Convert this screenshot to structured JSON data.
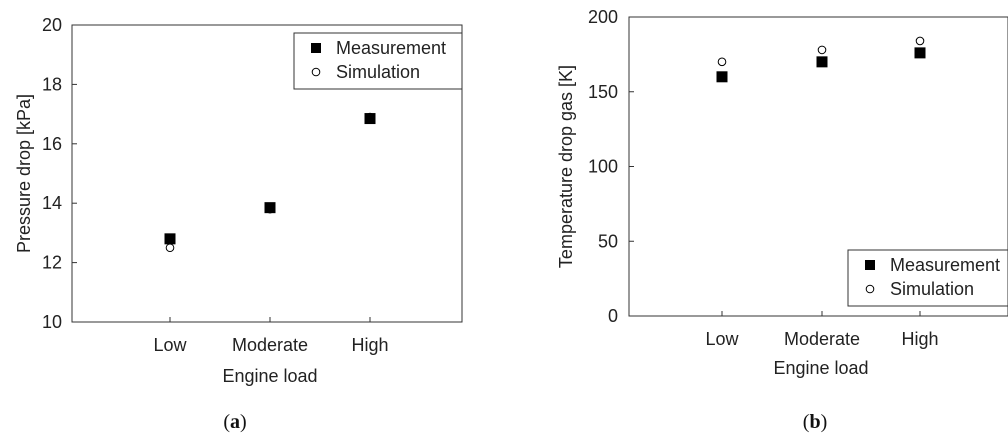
{
  "chart_data": [
    {
      "type": "scatter",
      "panel_label": "(a)",
      "panel_letter": "a",
      "categories": [
        "Low",
        "Moderate",
        "High"
      ],
      "xlabel": "Engine load",
      "ylabel": "Pressure drop [kPa]",
      "ylim": [
        10,
        20
      ],
      "yticks": [
        "10",
        "12",
        "14",
        "16",
        "18",
        "20"
      ],
      "grid": false,
      "legend_position": "top-right",
      "series": [
        {
          "name": "Measurement",
          "marker": "filled-square",
          "color": "#000000",
          "values": [
            12.8,
            13.85,
            16.85
          ]
        },
        {
          "name": "Simulation",
          "marker": "open-circle",
          "color": "#000000",
          "values": [
            12.5,
            13.8,
            16.9
          ]
        }
      ]
    },
    {
      "type": "scatter",
      "panel_label": "(b)",
      "panel_letter": "b",
      "categories": [
        "Low",
        "Moderate",
        "High"
      ],
      "xlabel": "Engine load",
      "ylabel": "Temperature drop gas [K]",
      "ylim": [
        0,
        200
      ],
      "yticks": [
        "0",
        "50",
        "100",
        "150",
        "200"
      ],
      "grid": false,
      "legend_position": "bottom-right",
      "series": [
        {
          "name": "Measurement",
          "marker": "filled-square",
          "color": "#000000",
          "values": [
            160,
            170,
            176
          ]
        },
        {
          "name": "Simulation",
          "marker": "open-circle",
          "color": "#000000",
          "values": [
            170,
            178,
            184
          ]
        }
      ]
    }
  ]
}
